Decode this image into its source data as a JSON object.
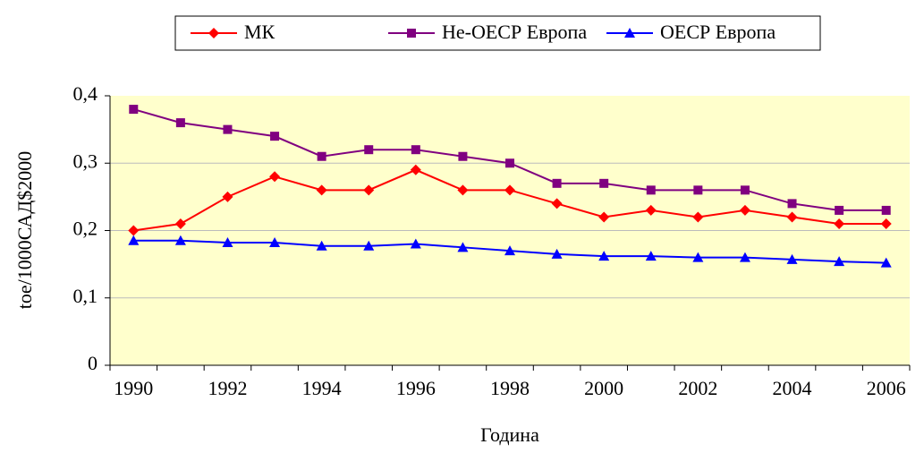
{
  "chart_data": {
    "type": "line",
    "categories": [
      "1990",
      null,
      "1992",
      null,
      "1994",
      null,
      "1996",
      null,
      "1998",
      null,
      "2000",
      null,
      "2002",
      null,
      "2004",
      null,
      "2006"
    ],
    "series": [
      {
        "name": "МК",
        "color": "#FF0000",
        "marker": "diamond",
        "values": [
          0.2,
          0.21,
          0.25,
          0.28,
          0.26,
          0.26,
          0.29,
          0.26,
          0.26,
          0.24,
          0.22,
          0.23,
          0.22,
          0.23,
          0.22,
          0.21,
          0.21
        ]
      },
      {
        "name": "Не-ОЕСР Европа",
        "color": "#800080",
        "marker": "square",
        "values": [
          0.38,
          0.36,
          0.35,
          0.34,
          0.31,
          0.32,
          0.32,
          0.31,
          0.3,
          0.27,
          0.27,
          0.26,
          0.26,
          0.26,
          0.24,
          0.23,
          0.23
        ]
      },
      {
        "name": "ОЕСР Европа",
        "color": "#0000FF",
        "marker": "triangle",
        "values": [
          0.185,
          0.185,
          0.182,
          0.182,
          0.177,
          0.177,
          0.18,
          0.175,
          0.17,
          0.165,
          0.162,
          0.162,
          0.16,
          0.16,
          0.157,
          0.154,
          0.152
        ]
      }
    ],
    "ylim": [
      0,
      0.4
    ],
    "yticks": [
      0,
      {
        "value": 0.1,
        "label": "0,1"
      },
      {
        "value": 0.2,
        "label": "0,2"
      },
      {
        "value": 0.3,
        "label": "0,3"
      },
      {
        "value": 0.4,
        "label": "0,4"
      }
    ],
    "xlabel": "Година",
    "ylabel": "toe/1000САД$2000",
    "grid": true,
    "legend": "top"
  }
}
